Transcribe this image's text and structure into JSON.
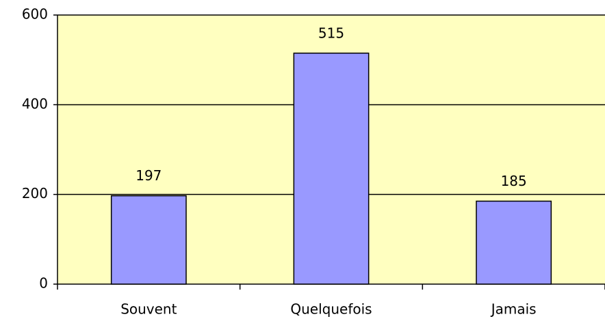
{
  "chart_data": {
    "type": "bar",
    "categories": [
      "Souvent",
      "Quelquefois",
      "Jamais"
    ],
    "values": [
      197,
      515,
      185
    ],
    "color": "#9999ff",
    "ylim": [
      0,
      600
    ],
    "yticks": [
      0,
      200,
      400,
      600
    ],
    "grid": true
  }
}
